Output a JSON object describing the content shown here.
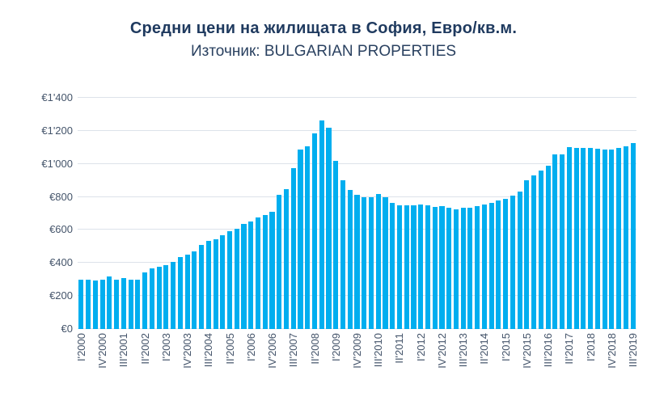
{
  "header": {
    "title": "Средни цени на жилищата в София, Евро/кв.м.",
    "subtitle": "Източник: BULGARIAN PROPERTIES"
  },
  "chart_data": {
    "type": "bar",
    "title": "Средни цени на жилищата в София, Евро/кв.м.",
    "subtitle": "Източник: BULGARIAN PROPERTIES",
    "ylim": [
      0,
      1400
    ],
    "grid": true,
    "legend": "none",
    "y_tick_values": [
      0,
      200,
      400,
      600,
      800,
      1000,
      1200,
      1400
    ],
    "y_tick_labels": [
      "€0",
      "€200",
      "€400",
      "€600",
      "€800",
      "€1'000",
      "€1'200",
      "€1'400"
    ],
    "x_tick_interval": 3,
    "x_tick_labels": [
      "I'2000",
      "IV'2000",
      "III'2001",
      "II'2002",
      "I'2003",
      "IV'2003",
      "III'2004",
      "II'2005",
      "I'2006",
      "IV'2006",
      "III'2007",
      "II'2008",
      "I'2009",
      "IV'2009",
      "III'2010",
      "II'2011",
      "I'2012",
      "IV'2012",
      "III'2013",
      "II'2014",
      "I'2015",
      "IV'2015",
      "III'2016",
      "II'2017",
      "I'2018",
      "IV'2018",
      "III'2019"
    ],
    "values": [
      300,
      298,
      295,
      300,
      318,
      300,
      310,
      298,
      300,
      345,
      365,
      375,
      385,
      405,
      435,
      450,
      470,
      508,
      532,
      545,
      570,
      594,
      606,
      635,
      652,
      675,
      692,
      710,
      815,
      845,
      975,
      1085,
      1108,
      1186,
      1265,
      1218,
      1018,
      900,
      840,
      812,
      796,
      800,
      817,
      798,
      762,
      747,
      749,
      751,
      753,
      749,
      741,
      745,
      733,
      726,
      735,
      734,
      746,
      752,
      764,
      776,
      790,
      806,
      831,
      900,
      930,
      960,
      990,
      1056,
      1058,
      1101,
      1099,
      1096,
      1099,
      1092,
      1087,
      1088,
      1096,
      1106,
      1124
    ],
    "bar_color": "#00aeef",
    "grid_color": "#dde2ea",
    "axis_text_color": "#44546a",
    "title_color": "#1f3a5f"
  }
}
